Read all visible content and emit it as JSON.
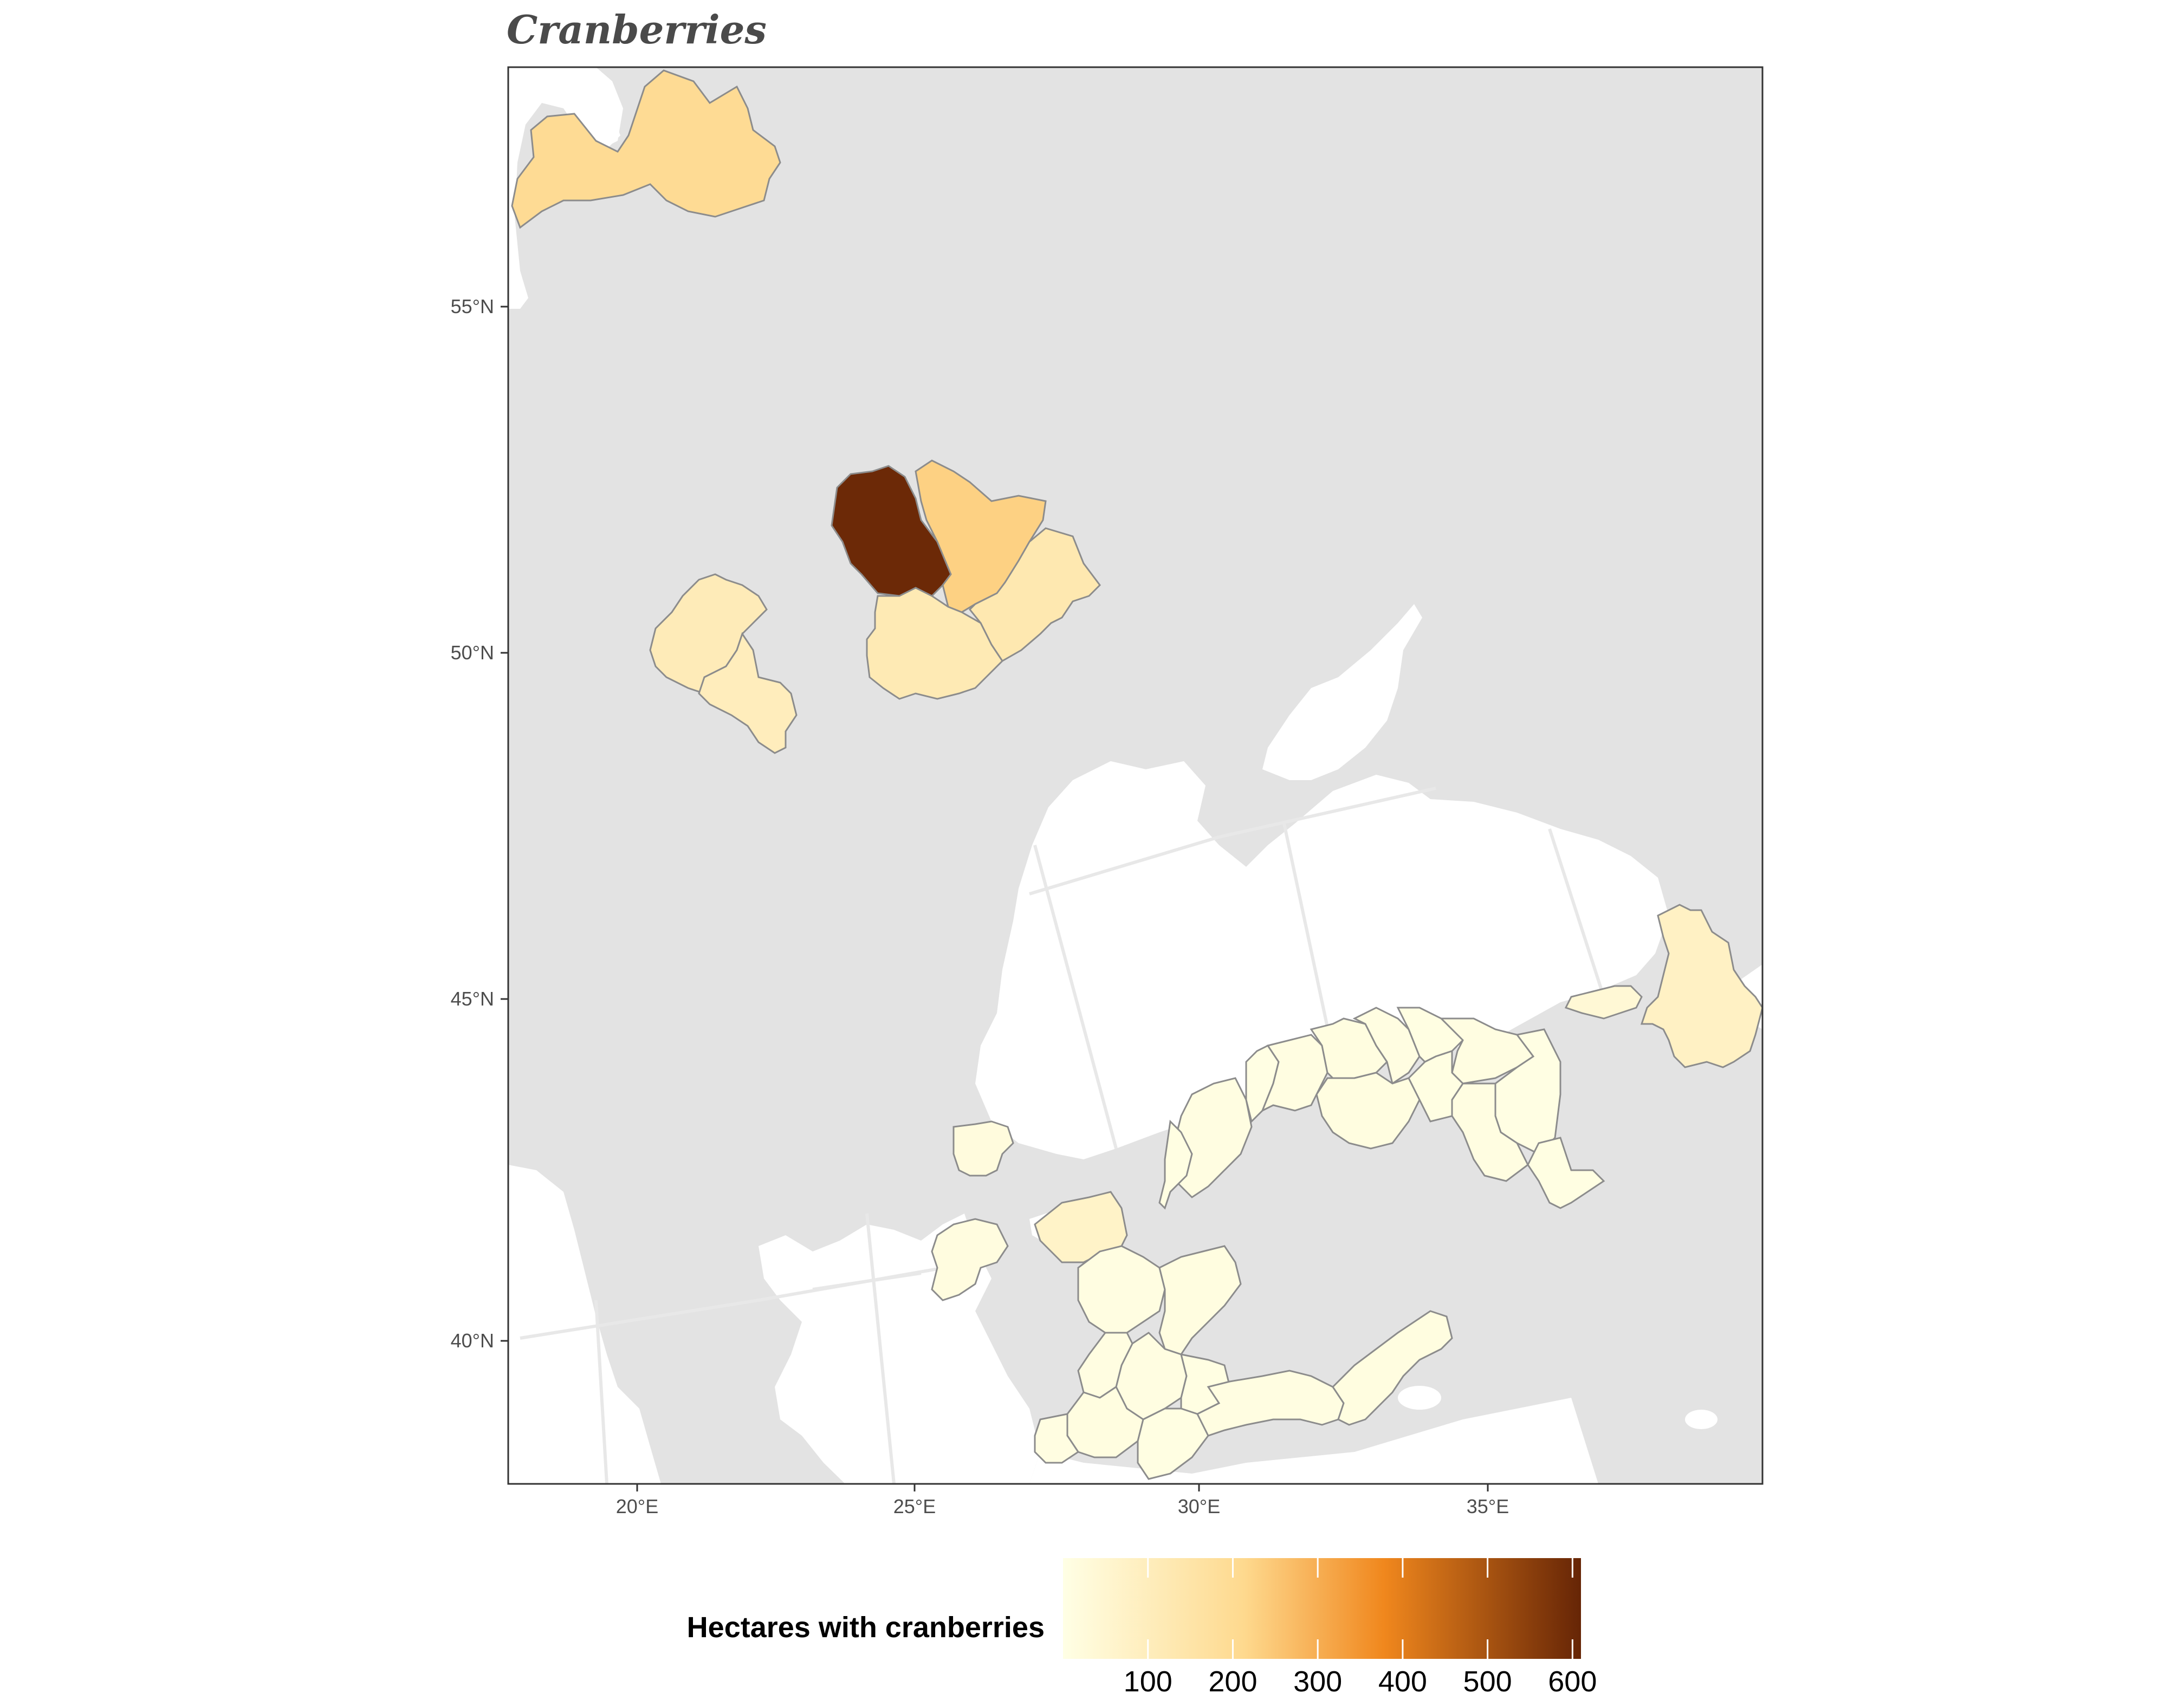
{
  "title": "Cranberries",
  "colors": {
    "panel_background": "#e3e3e3",
    "sea": "#ffffff",
    "region_border": "#8c8c8c",
    "scale_low": "#ffffe5",
    "scale_mid": "#fed98e",
    "scale_orange": "#f0871d",
    "scale_high": "#662506"
  },
  "axes": {
    "x_ticks": [
      "20°E",
      "25°E",
      "30°E",
      "35°E"
    ],
    "y_ticks": [
      "55°N",
      "50°N",
      "45°N",
      "40°N"
    ],
    "lon_range": [
      17.7,
      39.8
    ],
    "lat_range": [
      38.0,
      58.5
    ]
  },
  "legend": {
    "title": "Hectares with cranberries",
    "ticks": [
      "100",
      "200",
      "300",
      "400",
      "500",
      "600"
    ],
    "range": [
      0,
      610
    ],
    "placement": "bottom"
  },
  "map_data": {
    "type": "choropleth",
    "regions": [
      {
        "id": "latvia",
        "value": 200
      },
      {
        "id": "volyn",
        "value": 600
      },
      {
        "id": "rivne",
        "value": 230
      },
      {
        "id": "zhytomyr-area",
        "value": 130
      },
      {
        "id": "khmelnytskyi-area",
        "value": 120
      },
      {
        "id": "lviv-west",
        "value": 110
      },
      {
        "id": "ivano-frankivsk",
        "value": 100
      },
      {
        "id": "rostov-area",
        "value": 80
      },
      {
        "id": "krasnodar-area",
        "value": 40
      },
      {
        "id": "bulgaria-coast",
        "value": 20
      },
      {
        "id": "turkey-west-1",
        "value": 70
      },
      {
        "id": "turkey-north-1",
        "value": 10
      },
      {
        "id": "turkey-north-2",
        "value": 8
      },
      {
        "id": "turkey-north-3",
        "value": 6
      },
      {
        "id": "turkey-north-4",
        "value": 10
      },
      {
        "id": "turkey-north-5",
        "value": 12
      },
      {
        "id": "turkey-north-6",
        "value": 10
      },
      {
        "id": "turkey-north-7",
        "value": 8
      },
      {
        "id": "turkey-north-8",
        "value": 10
      },
      {
        "id": "turkey-north-9",
        "value": 6
      },
      {
        "id": "turkey-north-10",
        "value": 8
      },
      {
        "id": "turkey-north-11",
        "value": 10
      },
      {
        "id": "turkey-north-12",
        "value": 12
      },
      {
        "id": "turkey-north-13",
        "value": 8
      },
      {
        "id": "turkey-central-1",
        "value": 10
      },
      {
        "id": "turkey-central-2",
        "value": 12
      },
      {
        "id": "turkey-central-3",
        "value": 10
      },
      {
        "id": "turkey-central-4",
        "value": 8
      },
      {
        "id": "turkey-south-1",
        "value": 10
      },
      {
        "id": "turkey-south-2",
        "value": 12
      },
      {
        "id": "turkey-south-3",
        "value": 10
      },
      {
        "id": "turkey-south-4",
        "value": 8
      },
      {
        "id": "turkey-south-5",
        "value": 10
      },
      {
        "id": "turkey-south-6",
        "value": 12
      },
      {
        "id": "greece-lesbos-area",
        "value": 15
      }
    ]
  }
}
